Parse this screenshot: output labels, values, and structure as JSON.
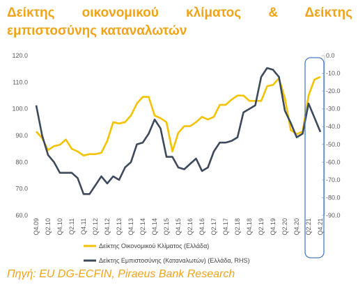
{
  "title_line1": "Δείκτης οικονομικού κλίματος & Δείκτης",
  "title_line2": "εμπιστοσύνης καταναλωτών",
  "source": "Πηγή: EU DG-ECFIN, Piraeus Bank Research",
  "chart_data": {
    "type": "line",
    "categories": [
      "Q4.09",
      "Q1.10",
      "Q2.10",
      "Q3.10",
      "Q4.10",
      "Q1.11",
      "Q2.11",
      "Q3.11",
      "Q4.11",
      "Q1.12",
      "Q2.12",
      "Q3.12",
      "Q4.12",
      "Q1.13",
      "Q2.13",
      "Q3.13",
      "Q4.13",
      "Q1.14",
      "Q2.14",
      "Q3.14",
      "Q4.14",
      "Q1.15",
      "Q2.15",
      "Q3.15",
      "Q4.15",
      "Q1.16",
      "Q2.16",
      "Q3.16",
      "Q4.16",
      "Q1.17",
      "Q2.17",
      "Q3.17",
      "Q4.17",
      "Q1.18",
      "Q2.18",
      "Q3.18",
      "Q4.18",
      "Q1.19",
      "Q2.19",
      "Q3.19",
      "Q4.19",
      "Q1.20",
      "Q2.20",
      "Q3.20",
      "Q4.20",
      "Q1.21",
      "Q2.21",
      "Q3.21",
      "Q4.21"
    ],
    "x_tick_labels": [
      "Q4.09",
      "Q2.10",
      "Q4.10",
      "Q2.11",
      "Q4.11",
      "Q2.12",
      "Q4.12",
      "Q2.13",
      "Q4.13",
      "Q2.14",
      "Q4.14",
      "Q2.15",
      "Q4.15",
      "Q2.16",
      "Q4.16",
      "Q2.17",
      "Q4.17",
      "Q2.18",
      "Q4.18",
      "Q2.19",
      "Q4.19",
      "Q2.20",
      "Q4.20",
      "Q2.21",
      "Q4.21"
    ],
    "left_axis": {
      "ylim": [
        60,
        120
      ],
      "ticks": [
        "120.0",
        "110.0",
        "100.0",
        "90.0",
        "80.0",
        "70.0",
        "60.0"
      ]
    },
    "right_axis": {
      "ylim": [
        -90,
        0
      ],
      "ticks": [
        "0.0",
        "-10.0",
        "-20.0",
        "-30.0",
        "-40.0",
        "-50.0",
        "-60.0",
        "-70.0",
        "-80.0",
        "-90.0"
      ]
    },
    "series": [
      {
        "name": "Δείκτης Οικονομικού Κλίματος (Ελλάδα)",
        "axis": "left",
        "color": "#f5c200",
        "values": [
          91.5,
          89,
          84.5,
          86,
          86.5,
          88.5,
          85,
          84,
          82.5,
          83,
          83,
          83.5,
          88,
          95,
          94.5,
          95,
          97.5,
          102,
          104.5,
          104.5,
          97.5,
          96.5,
          95,
          84,
          91,
          93.5,
          93.5,
          95,
          97,
          96,
          97,
          101.5,
          101.5,
          103.5,
          105,
          105,
          103,
          103,
          103,
          108.5,
          109,
          111.5,
          104,
          92,
          90.5,
          91.5,
          105,
          111,
          112
        ]
      },
      {
        "name": "Δείκτης Εμπιστοσύνης (Καταναλωτών) (Ελλάδα, RHS)",
        "axis": "right",
        "color": "#3d4a5c",
        "values": [
          -28,
          -45,
          -56,
          -60,
          -66,
          -66,
          -66,
          -69,
          -78,
          -78,
          -73,
          -68,
          -72,
          -68,
          -70,
          -63,
          -60,
          -50,
          -49,
          -44,
          -36,
          -41,
          -57,
          -57,
          -63,
          -64,
          -61,
          -58,
          -65,
          -63,
          -54,
          -49,
          -49,
          -48,
          -46,
          -32,
          -30,
          -28,
          -12,
          -7,
          -8,
          -12,
          -31,
          -38,
          -46,
          -44,
          -27,
          -35,
          -43
        ]
      }
    ],
    "legend_position": "bottom",
    "grid": false,
    "highlight": {
      "from": "Q2.21",
      "to": "Q4.21"
    }
  }
}
